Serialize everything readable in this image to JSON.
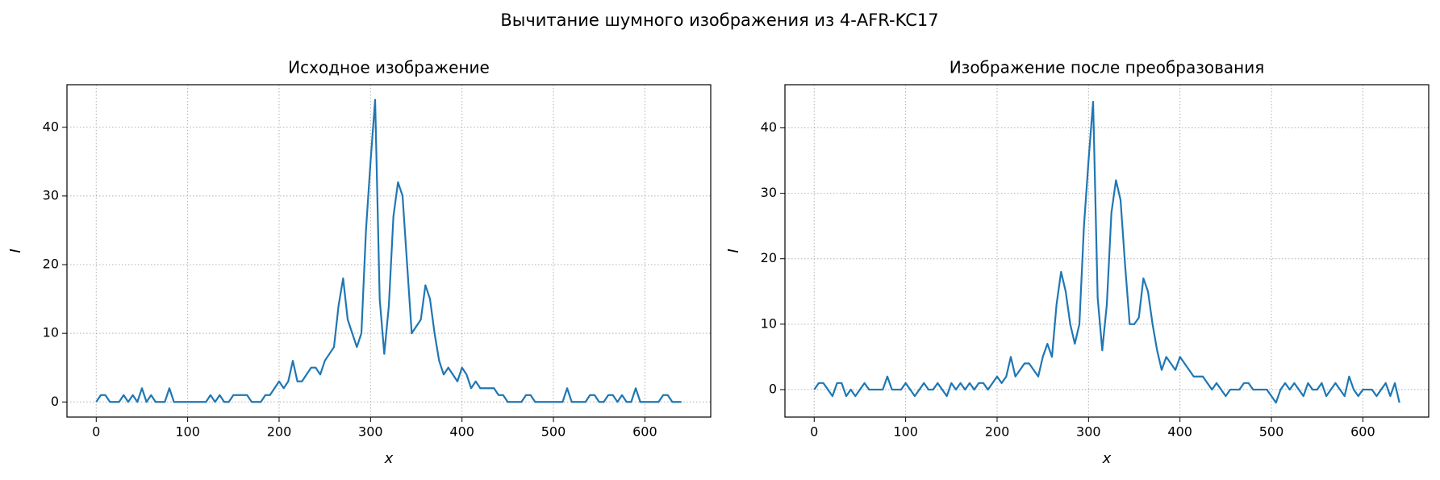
{
  "title": "Вычитание шумного изображения из 4-AFR-KC17",
  "chart_data": [
    {
      "type": "line",
      "title": "Исходное изображение",
      "xlabel": "x",
      "ylabel": "I",
      "x": [
        0,
        5,
        10,
        15,
        20,
        25,
        30,
        35,
        40,
        45,
        50,
        55,
        60,
        65,
        70,
        75,
        80,
        85,
        90,
        95,
        100,
        105,
        110,
        115,
        120,
        125,
        130,
        135,
        140,
        145,
        150,
        155,
        160,
        165,
        170,
        175,
        180,
        185,
        190,
        195,
        200,
        205,
        210,
        215,
        220,
        225,
        230,
        235,
        240,
        245,
        250,
        255,
        260,
        265,
        270,
        275,
        280,
        285,
        290,
        295,
        300,
        305,
        310,
        315,
        320,
        325,
        330,
        335,
        340,
        345,
        350,
        355,
        360,
        365,
        370,
        375,
        380,
        385,
        390,
        395,
        400,
        405,
        410,
        415,
        420,
        425,
        430,
        435,
        440,
        445,
        450,
        455,
        460,
        465,
        470,
        475,
        480,
        485,
        490,
        495,
        500,
        505,
        510,
        515,
        520,
        525,
        530,
        535,
        540,
        545,
        550,
        555,
        560,
        565,
        570,
        575,
        580,
        585,
        590,
        595,
        600,
        605,
        610,
        615,
        620,
        625,
        630,
        635,
        640
      ],
      "series": [
        {
          "color": "#1f77b4",
          "values": [
            0,
            1,
            1,
            0,
            0,
            0,
            1,
            0,
            1,
            0,
            2,
            0,
            1,
            0,
            0,
            0,
            2,
            0,
            0,
            0,
            0,
            0,
            0,
            0,
            0,
            1,
            0,
            1,
            0,
            0,
            1,
            1,
            1,
            1,
            0,
            0,
            0,
            1,
            1,
            2,
            3,
            2,
            3,
            6,
            3,
            3,
            4,
            5,
            5,
            4,
            6,
            7,
            8,
            14,
            18,
            12,
            10,
            8,
            10,
            25,
            35,
            44,
            15,
            7,
            14,
            27,
            32,
            30,
            20,
            10,
            11,
            12,
            17,
            15,
            10,
            6,
            4,
            5,
            4,
            3,
            5,
            4,
            2,
            3,
            2,
            2,
            2,
            2,
            1,
            1,
            0,
            0,
            0,
            0,
            1,
            1,
            0,
            0,
            0,
            0,
            0,
            0,
            0,
            2,
            0,
            0,
            0,
            0,
            1,
            1,
            0,
            0,
            1,
            1,
            0,
            1,
            0,
            0,
            2,
            0,
            0,
            0,
            0,
            0,
            1,
            1,
            0,
            0,
            0
          ]
        }
      ],
      "xlim": [
        -32,
        672
      ],
      "ylim": [
        -2.2,
        46.2
      ],
      "xticks": [
        0,
        100,
        200,
        300,
        400,
        500,
        600
      ],
      "yticks": [
        0,
        10,
        20,
        30,
        40
      ],
      "grid": true
    },
    {
      "type": "line",
      "title": "Изображение после преобразования",
      "xlabel": "x",
      "ylabel": "I",
      "x": [
        0,
        5,
        10,
        15,
        20,
        25,
        30,
        35,
        40,
        45,
        50,
        55,
        60,
        65,
        70,
        75,
        80,
        85,
        90,
        95,
        100,
        105,
        110,
        115,
        120,
        125,
        130,
        135,
        140,
        145,
        150,
        155,
        160,
        165,
        170,
        175,
        180,
        185,
        190,
        195,
        200,
        205,
        210,
        215,
        220,
        225,
        230,
        235,
        240,
        245,
        250,
        255,
        260,
        265,
        270,
        275,
        280,
        285,
        290,
        295,
        300,
        305,
        310,
        315,
        320,
        325,
        330,
        335,
        340,
        345,
        350,
        355,
        360,
        365,
        370,
        375,
        380,
        385,
        390,
        395,
        400,
        405,
        410,
        415,
        420,
        425,
        430,
        435,
        440,
        445,
        450,
        455,
        460,
        465,
        470,
        475,
        480,
        485,
        490,
        495,
        500,
        505,
        510,
        515,
        520,
        525,
        530,
        535,
        540,
        545,
        550,
        555,
        560,
        565,
        570,
        575,
        580,
        585,
        590,
        595,
        600,
        605,
        610,
        615,
        620,
        625,
        630,
        635,
        640
      ],
      "series": [
        {
          "color": "#1f77b4",
          "values": [
            0,
            1,
            1,
            0,
            -1,
            1,
            1,
            -1,
            0,
            -1,
            0,
            1,
            0,
            0,
            0,
            0,
            2,
            0,
            0,
            0,
            1,
            0,
            -1,
            0,
            1,
            0,
            0,
            1,
            0,
            -1,
            1,
            0,
            1,
            0,
            1,
            0,
            1,
            1,
            0,
            1,
            2,
            1,
            2,
            5,
            2,
            3,
            4,
            4,
            3,
            2,
            5,
            7,
            5,
            13,
            18,
            15,
            10,
            7,
            10,
            25,
            35,
            44,
            14,
            6,
            13,
            27,
            32,
            29,
            19,
            10,
            10,
            11,
            17,
            15,
            10,
            6,
            3,
            5,
            4,
            3,
            5,
            4,
            3,
            2,
            2,
            2,
            1,
            0,
            1,
            0,
            -1,
            0,
            0,
            0,
            1,
            1,
            0,
            0,
            0,
            0,
            -1,
            -2,
            0,
            1,
            0,
            1,
            0,
            -1,
            1,
            0,
            0,
            1,
            -1,
            0,
            1,
            0,
            -1,
            2,
            0,
            -1,
            0,
            0,
            0,
            -1,
            0,
            1,
            -1,
            1,
            -2
          ]
        }
      ],
      "xlim": [
        -32,
        672
      ],
      "ylim": [
        -4.2,
        46.6
      ],
      "xticks": [
        0,
        100,
        200,
        300,
        400,
        500,
        600
      ],
      "yticks": [
        0,
        10,
        20,
        30,
        40
      ],
      "grid": true
    }
  ]
}
